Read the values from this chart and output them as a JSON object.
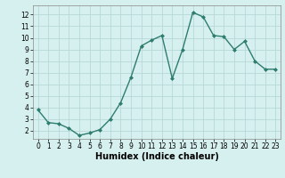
{
  "x": [
    0,
    1,
    2,
    3,
    4,
    5,
    6,
    7,
    8,
    9,
    10,
    11,
    12,
    13,
    14,
    15,
    16,
    17,
    18,
    19,
    20,
    21,
    22,
    23
  ],
  "y": [
    3.8,
    2.7,
    2.6,
    2.2,
    1.6,
    1.8,
    2.1,
    3.0,
    4.4,
    6.6,
    9.3,
    9.8,
    10.2,
    6.5,
    9.0,
    12.2,
    11.8,
    10.2,
    10.1,
    9.0,
    9.7,
    8.0,
    7.3,
    7.3
  ],
  "line_color": "#2e7d6e",
  "marker": "D",
  "marker_size": 2.0,
  "bg_color": "#d6f0ef",
  "grid_color": "#b8d8d8",
  "xlabel": "Humidex (Indice chaleur)",
  "xlim": [
    -0.5,
    23.5
  ],
  "ylim": [
    1.3,
    12.8
  ],
  "yticks": [
    2,
    3,
    4,
    5,
    6,
    7,
    8,
    9,
    10,
    11,
    12
  ],
  "xticks": [
    0,
    1,
    2,
    3,
    4,
    5,
    6,
    7,
    8,
    9,
    10,
    11,
    12,
    13,
    14,
    15,
    16,
    17,
    18,
    19,
    20,
    21,
    22,
    23
  ],
  "tick_fontsize": 5.5,
  "xlabel_fontsize": 7.0,
  "linewidth": 1.0
}
